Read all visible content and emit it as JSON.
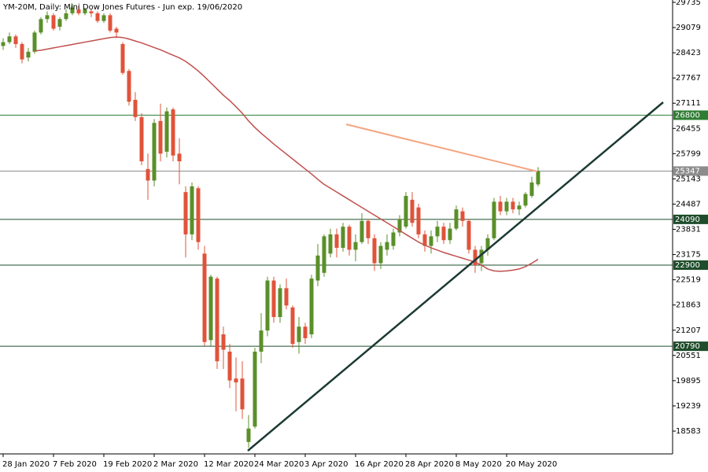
{
  "chart_data": {
    "type": "candlestick",
    "title": "YM-20M, Daily:  Mini Dow Jones Futures - Jun exp. 19/06/2020",
    "categories": [
      "28 Jan 2020",
      null,
      null,
      null,
      null,
      null,
      null,
      null,
      "7 Feb 2020",
      null,
      null,
      null,
      null,
      null,
      null,
      null,
      "19 Feb 2020",
      null,
      null,
      null,
      null,
      null,
      null,
      null,
      "2 Mar 2020",
      null,
      null,
      null,
      null,
      null,
      null,
      null,
      "12 Mar 2020",
      null,
      null,
      null,
      null,
      null,
      null,
      null,
      "24 Mar 2020",
      null,
      null,
      null,
      null,
      null,
      null,
      null,
      "3 Apr 2020",
      null,
      null,
      null,
      null,
      null,
      null,
      null,
      "16 Apr 2020",
      null,
      null,
      null,
      null,
      null,
      null,
      null,
      "28 Apr 2020",
      null,
      null,
      null,
      null,
      null,
      null,
      null,
      "8 May 2020",
      null,
      null,
      null,
      null,
      null,
      null,
      null,
      "20 May 2020",
      null,
      null,
      null,
      null,
      null
    ],
    "open": [
      28600,
      28700,
      28850,
      28650,
      28300,
      28450,
      28950,
      29300,
      29400,
      29100,
      29300,
      29450,
      29550,
      29450,
      29500,
      29450,
      29250,
      29400,
      29050,
      28650,
      27950,
      27200,
      26750,
      25400,
      25100,
      26650,
      25850,
      26950,
      25800,
      24800,
      23700,
      24900,
      23200,
      20950,
      22550,
      21100,
      20650,
      19950,
      19950,
      18300,
      18700,
      20650,
      21200,
      22500,
      21550,
      22300,
      21800,
      20900,
      21300,
      21100,
      22500,
      22700,
      23200,
      23700,
      23350,
      23900,
      23300,
      23500,
      24050,
      23600,
      22950,
      23300,
      23400,
      23750,
      23900,
      24600,
      24400,
      23700,
      23400,
      23650,
      23900,
      23550,
      23850,
      24300,
      24050,
      23300,
      22950,
      23300,
      23600,
      24550,
      24300,
      24550,
      24350,
      24450,
      24700,
      25000
    ],
    "high": [
      28800,
      28950,
      28900,
      28700,
      28550,
      29000,
      29350,
      29500,
      29450,
      29350,
      29550,
      29700,
      29650,
      29600,
      29550,
      29500,
      29450,
      29450,
      29100,
      28700,
      28000,
      27400,
      26850,
      25800,
      26700,
      27100,
      27000,
      27000,
      26200,
      24950,
      25050,
      24950,
      23400,
      22650,
      22600,
      21300,
      20850,
      20500,
      20400,
      19000,
      20750,
      21650,
      22600,
      22600,
      22400,
      22550,
      21850,
      21550,
      21400,
      22650,
      23450,
      23700,
      23850,
      23850,
      24000,
      23950,
      23700,
      24250,
      24100,
      23700,
      23500,
      23700,
      23850,
      24200,
      24800,
      24800,
      24500,
      23800,
      23800,
      24050,
      24000,
      24000,
      24450,
      24400,
      24100,
      23400,
      23400,
      23700,
      24650,
      24700,
      24650,
      24650,
      24550,
      24800,
      25200,
      25450
    ],
    "low": [
      28500,
      28650,
      28550,
      28150,
      28200,
      28400,
      28900,
      29200,
      29000,
      29000,
      29250,
      29400,
      29400,
      29400,
      29350,
      29200,
      29200,
      28950,
      28800,
      27850,
      27050,
      26650,
      25500,
      24600,
      24950,
      25600,
      25700,
      25600,
      25000,
      23100,
      23550,
      23300,
      20800,
      20800,
      20200,
      20200,
      19700,
      19100,
      18900,
      18150,
      18650,
      20350,
      21050,
      21400,
      21400,
      21750,
      20750,
      20600,
      20850,
      21000,
      22350,
      22600,
      23100,
      23100,
      23250,
      23150,
      23000,
      23450,
      23450,
      22750,
      22800,
      23150,
      23300,
      23650,
      23850,
      23900,
      23600,
      23250,
      23200,
      23500,
      23450,
      23450,
      23800,
      23900,
      23200,
      22700,
      22750,
      23150,
      23550,
      24200,
      24200,
      24250,
      24200,
      24400,
      24650,
      24950
    ],
    "close": [
      28700,
      28850,
      28650,
      28250,
      28450,
      28950,
      29300,
      29400,
      29050,
      29300,
      29450,
      29600,
      29450,
      29550,
      29450,
      29250,
      29400,
      29000,
      28950,
      27900,
      27150,
      26750,
      25600,
      25100,
      26600,
      25800,
      26900,
      25750,
      25600,
      23700,
      24950,
      23500,
      20900,
      22600,
      20400,
      20700,
      19900,
      19850,
      19150,
      18650,
      20650,
      21200,
      22500,
      21550,
      22300,
      21850,
      20850,
      21300,
      21000,
      22550,
      23150,
      23650,
      23700,
      23350,
      23900,
      23300,
      23500,
      24050,
      23600,
      22950,
      23400,
      23500,
      23750,
      24100,
      24700,
      24000,
      23700,
      23400,
      23650,
      23900,
      23550,
      23850,
      24350,
      24050,
      23300,
      22900,
      23300,
      23600,
      24550,
      24300,
      24550,
      24350,
      24450,
      24750,
      25050,
      25347
    ],
    "up_color": "#5a8f29",
    "down_color": "#e0533a",
    "ma": {
      "color": "#c0504d",
      "values": [
        null,
        null,
        null,
        null,
        null,
        28470,
        28490,
        28520,
        28550,
        28580,
        28610,
        28640,
        28670,
        28700,
        28730,
        28760,
        28790,
        28820,
        28835,
        28820,
        28780,
        28730,
        28680,
        28620,
        28560,
        28500,
        28430,
        28360,
        28290,
        28200,
        28080,
        27950,
        27800,
        27640,
        27480,
        27320,
        27180,
        27020,
        26850,
        26650,
        26480,
        26330,
        26190,
        26050,
        25920,
        25790,
        25660,
        25530,
        25400,
        25270,
        25130,
        25000,
        24900,
        24800,
        24700,
        24600,
        24500,
        24400,
        24300,
        24200,
        24100,
        24000,
        23900,
        23800,
        23700,
        23600,
        23500,
        23420,
        23350,
        23290,
        23230,
        23180,
        23130,
        23080,
        23030,
        22980,
        22900,
        22800,
        22750,
        22740,
        22750,
        22770,
        22800,
        22860,
        22950,
        23050
      ]
    },
    "levels": [
      {
        "value": 26800,
        "color": "#2e7d32"
      },
      {
        "value": 25347,
        "color": "#8c8c8c"
      },
      {
        "value": 24090,
        "color": "#1e4d2b"
      },
      {
        "value": 22900,
        "color": "#1e4d2b"
      },
      {
        "value": 20790,
        "color": "#1e4d2b"
      }
    ],
    "ylim": [
      17990,
      29796
    ],
    "yticks": [
      29735,
      29079,
      28423,
      27767,
      27111,
      26455,
      25799,
      25143,
      24487,
      23831,
      23175,
      22519,
      21863,
      21207,
      20551,
      19895,
      19239,
      18583
    ]
  }
}
